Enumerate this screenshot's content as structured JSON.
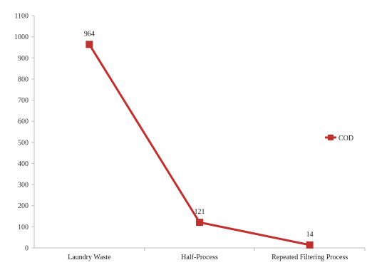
{
  "chart_data": {
    "type": "line",
    "categories": [
      "Laundry Waste",
      "Half-Process",
      "Repeated Filtering Process"
    ],
    "series": [
      {
        "name": "COD",
        "values": [
          964,
          121,
          14
        ],
        "color": "#c0302e"
      }
    ],
    "data_labels": [
      "964",
      "121",
      "14"
    ],
    "ylim": [
      0,
      1100
    ],
    "yticks": [
      "0",
      "100",
      "200",
      "300",
      "400",
      "500",
      "600",
      "700",
      "800",
      "900",
      "1000",
      "1100"
    ],
    "grid": false,
    "legend_position": "right",
    "marker": "square"
  }
}
